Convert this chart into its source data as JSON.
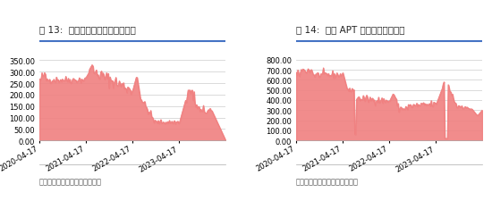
{
  "fig13_title": "图 13:  中国钨粉工厂总库存（吨）",
  "fig14_title": "图 14:  中国 APT 工厂总库存（吨）",
  "footer": "数据来源：百川盈孚，中信建投",
  "fill_color": "#F08080",
  "fill_alpha": 0.9,
  "line_color": "#F08080",
  "background_color": "#ffffff",
  "grid_color": "#cccccc",
  "fig13_yticks": [
    0.0,
    50.0,
    100.0,
    150.0,
    200.0,
    250.0,
    300.0,
    350.0
  ],
  "fig13_ylim": [
    0,
    370
  ],
  "fig14_yticks": [
    0.0,
    100.0,
    200.0,
    300.0,
    400.0,
    500.0,
    600.0,
    700.0,
    800.0
  ],
  "fig14_ylim": [
    0,
    840
  ],
  "xtick_labels": [
    "2020-04-17",
    "2021-04-17",
    "2022-04-17",
    "2023-04-17"
  ],
  "title_color": "#222222",
  "title_fontsize": 7.5,
  "tick_fontsize": 6,
  "footer_fontsize": 6,
  "blue_line_color": "#4472C4",
  "footer_line_color": "#aaaaaa",
  "footer_text_color": "#555555"
}
